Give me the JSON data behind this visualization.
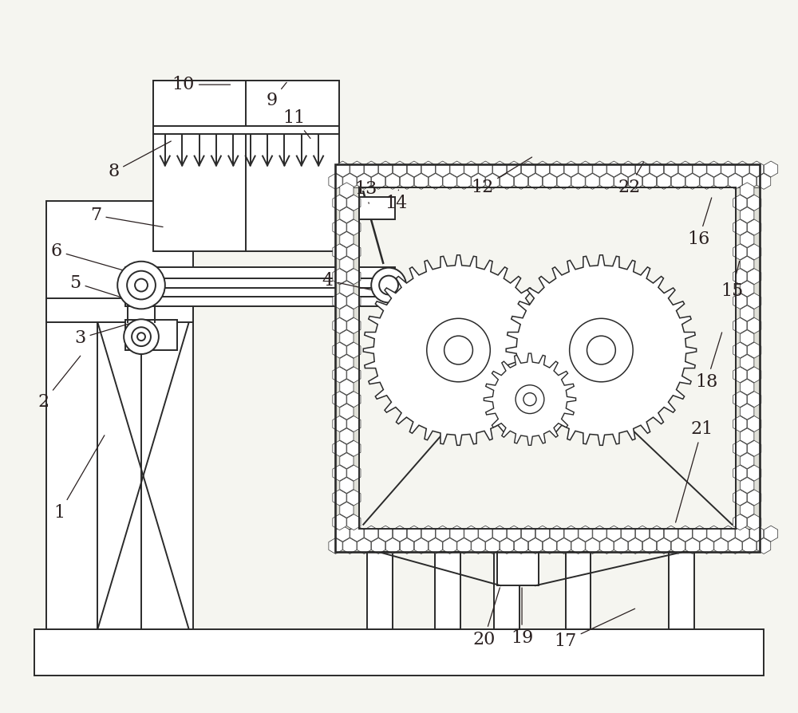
{
  "bg_color": "#f5f5f0",
  "line_color": "#2a2a2a",
  "lw": 1.4,
  "figsize": [
    10.0,
    8.94
  ],
  "dpi": 100,
  "label_fontsize": 16,
  "label_color": "#2a2020"
}
